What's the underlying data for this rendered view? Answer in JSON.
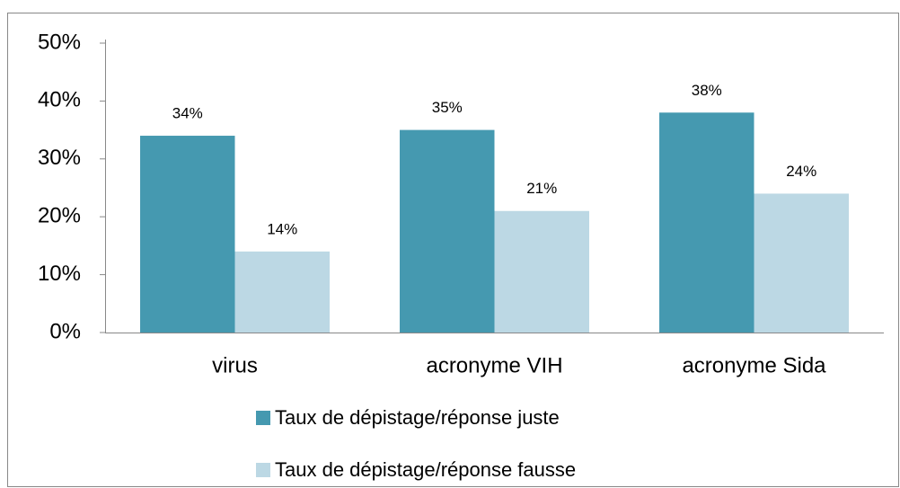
{
  "chart_data": {
    "type": "bar",
    "categories": [
      "virus",
      "acronyme VIH",
      "acronyme Sida"
    ],
    "series": [
      {
        "name": "Taux de dépistage/réponse juste",
        "color": "#4599b0",
        "values": [
          34,
          35,
          38
        ],
        "value_labels": [
          "34%",
          "35%",
          "38%"
        ]
      },
      {
        "name": "Taux de dépistage/réponse fausse",
        "color": "#bcd8e4",
        "values": [
          14,
          21,
          24
        ],
        "value_labels": [
          "14%",
          "21%",
          "24%"
        ]
      }
    ],
    "ylim": [
      0,
      50
    ],
    "yticks": [
      {
        "value": 0,
        "label": "0%"
      },
      {
        "value": 10,
        "label": "10%"
      },
      {
        "value": 20,
        "label": "20%"
      },
      {
        "value": 30,
        "label": "30%"
      },
      {
        "value": 40,
        "label": "40%"
      },
      {
        "value": 50,
        "label": "50%"
      }
    ],
    "grid": false,
    "legend": "bottom"
  }
}
